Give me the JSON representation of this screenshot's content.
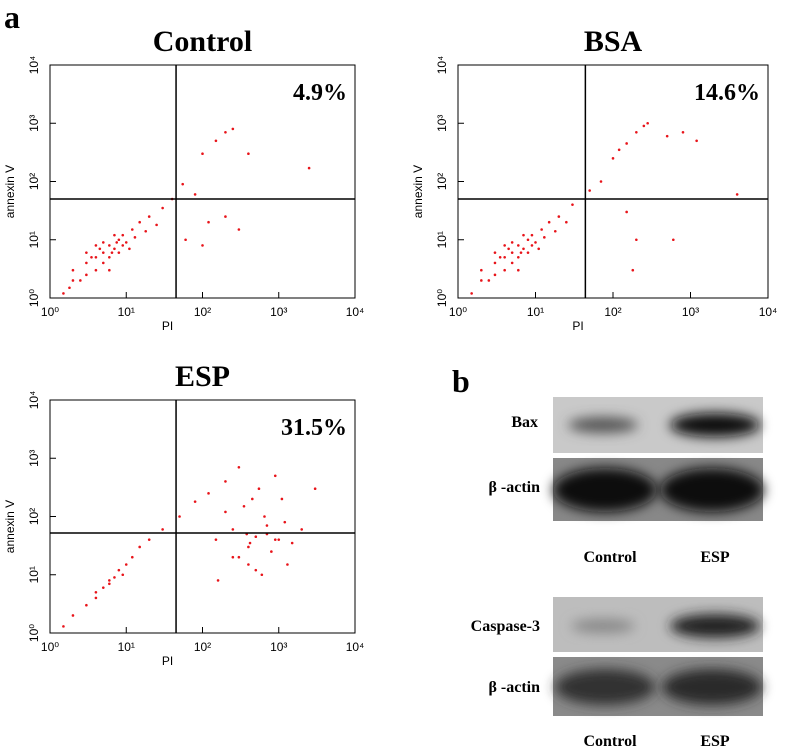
{
  "panel_labels": [
    "a",
    "b"
  ],
  "chart_data": [
    {
      "type": "scatter",
      "title": "Control",
      "annotation": "4.9%",
      "xlabel": "PI",
      "ylabel": "annexin V",
      "color": "#e8141a",
      "log_x": true,
      "log_y": true,
      "quadrant_x": 45,
      "quadrant_y": 50,
      "xlim": [
        1,
        10000
      ],
      "ylim": [
        1,
        10000
      ],
      "xticks": [
        {
          "value": 1,
          "label": "10⁰"
        },
        {
          "value": 10,
          "label": "10¹"
        },
        {
          "value": 100,
          "label": "10²"
        },
        {
          "value": 1000,
          "label": "10³"
        },
        {
          "value": 10000,
          "label": "10⁴"
        }
      ],
      "yticks": [
        {
          "value": 1,
          "label": "10⁰"
        },
        {
          "value": 10,
          "label": "10¹"
        },
        {
          "value": 100,
          "label": "10²"
        },
        {
          "value": 1000,
          "label": "10³"
        },
        {
          "value": 10000,
          "label": "10⁴"
        }
      ],
      "x": [
        2,
        3,
        4,
        5,
        6,
        7,
        8,
        4,
        3,
        5,
        6,
        9,
        10,
        12,
        15,
        7,
        3,
        2,
        1.5,
        20,
        30,
        40,
        55,
        100,
        150,
        200,
        250,
        80,
        120,
        200,
        300,
        60,
        100,
        2500,
        400,
        5,
        8,
        11,
        6,
        4,
        3.5,
        4.5,
        6.5,
        7.5,
        9,
        2.5,
        13,
        18,
        25,
        1.8
      ],
      "values": [
        2,
        4,
        5,
        6,
        8,
        7,
        10,
        3,
        2.5,
        4,
        5,
        12,
        9,
        15,
        20,
        12,
        6,
        3,
        1.2,
        25,
        35,
        50,
        90,
        300,
        500,
        700,
        800,
        60,
        20,
        25,
        15,
        10,
        8,
        170,
        300,
        9,
        6,
        7,
        3,
        8,
        5,
        7,
        6,
        9,
        8,
        2,
        11,
        14,
        18,
        1.5
      ]
    },
    {
      "type": "scatter",
      "title": "BSA",
      "annotation": "14.6%",
      "xlabel": "PI",
      "ylabel": "annexin V",
      "color": "#e8141a",
      "log_x": true,
      "log_y": true,
      "quadrant_x": 44,
      "quadrant_y": 50,
      "xlim": [
        1,
        10000
      ],
      "ylim": [
        1,
        10000
      ],
      "xticks": [
        {
          "value": 1,
          "label": "10⁰"
        },
        {
          "value": 10,
          "label": "10¹"
        },
        {
          "value": 100,
          "label": "10²"
        },
        {
          "value": 1000,
          "label": "10³"
        },
        {
          "value": 10000,
          "label": "10⁴"
        }
      ],
      "yticks": [
        {
          "value": 1,
          "label": "10⁰"
        },
        {
          "value": 10,
          "label": "10¹"
        },
        {
          "value": 100,
          "label": "10²"
        },
        {
          "value": 1000,
          "label": "10³"
        },
        {
          "value": 10000,
          "label": "10⁴"
        }
      ],
      "x": [
        2,
        3,
        4,
        5,
        6,
        7,
        8,
        4,
        3,
        5,
        6,
        9,
        10,
        12,
        15,
        7,
        3,
        2,
        1.5,
        20,
        30,
        50,
        70,
        100,
        150,
        200,
        280,
        500,
        800,
        1200,
        4000,
        150,
        200,
        180,
        600,
        5,
        8,
        11,
        6,
        4,
        3.5,
        4.5,
        6.5,
        9,
        2.5,
        13,
        18,
        25,
        120,
        250
      ],
      "values": [
        2,
        4,
        5,
        6,
        8,
        7,
        10,
        3,
        2.5,
        4,
        5,
        12,
        9,
        15,
        20,
        12,
        6,
        3,
        1.2,
        25,
        40,
        70,
        100,
        250,
        450,
        700,
        1000,
        600,
        700,
        500,
        60,
        30,
        10,
        3,
        10,
        9,
        6,
        7,
        3,
        8,
        5,
        7,
        6,
        8,
        2,
        11,
        14,
        20,
        350,
        900
      ]
    },
    {
      "type": "scatter",
      "title": "ESP",
      "annotation": "31.5%",
      "xlabel": "PI",
      "ylabel": "annexin V",
      "color": "#e8141a",
      "log_x": true,
      "log_y": true,
      "quadrant_x": 45,
      "quadrant_y": 52,
      "xlim": [
        1,
        10000
      ],
      "ylim": [
        1,
        10000
      ],
      "xticks": [
        {
          "value": 1,
          "label": "10⁰"
        },
        {
          "value": 10,
          "label": "10¹"
        },
        {
          "value": 100,
          "label": "10²"
        },
        {
          "value": 1000,
          "label": "10³"
        },
        {
          "value": 10000,
          "label": "10⁴"
        }
      ],
      "yticks": [
        {
          "value": 1,
          "label": "10⁰"
        },
        {
          "value": 10,
          "label": "10¹"
        },
        {
          "value": 100,
          "label": "10²"
        },
        {
          "value": 1000,
          "label": "10³"
        },
        {
          "value": 10000,
          "label": "10⁴"
        }
      ],
      "x": [
        2,
        3,
        4,
        5,
        6,
        7,
        8,
        10,
        12,
        15,
        20,
        30,
        1.5,
        4,
        6,
        9,
        50,
        80,
        120,
        200,
        300,
        150,
        250,
        400,
        500,
        700,
        1000,
        1500,
        2000,
        300,
        400,
        600,
        800,
        1200,
        350,
        450,
        550,
        900,
        200,
        3000,
        700,
        1100,
        250,
        500,
        650,
        380,
        420,
        900,
        1300,
        160
      ],
      "values": [
        2,
        3,
        5,
        6,
        8,
        9,
        12,
        15,
        20,
        30,
        40,
        60,
        1.3,
        4,
        7,
        10,
        100,
        180,
        250,
        400,
        700,
        40,
        60,
        30,
        45,
        50,
        40,
        35,
        60,
        20,
        15,
        10,
        25,
        80,
        150,
        200,
        300,
        500,
        120,
        300,
        70,
        200,
        20,
        12,
        100,
        50,
        35,
        40,
        15,
        8
      ]
    }
  ],
  "blots": [
    {
      "target": "Bax",
      "loading": "β -actin",
      "lanes": [
        "Control",
        "ESP"
      ]
    },
    {
      "target": "Caspase-3",
      "loading": "β -actin",
      "lanes": [
        "Control",
        "ESP"
      ]
    }
  ]
}
